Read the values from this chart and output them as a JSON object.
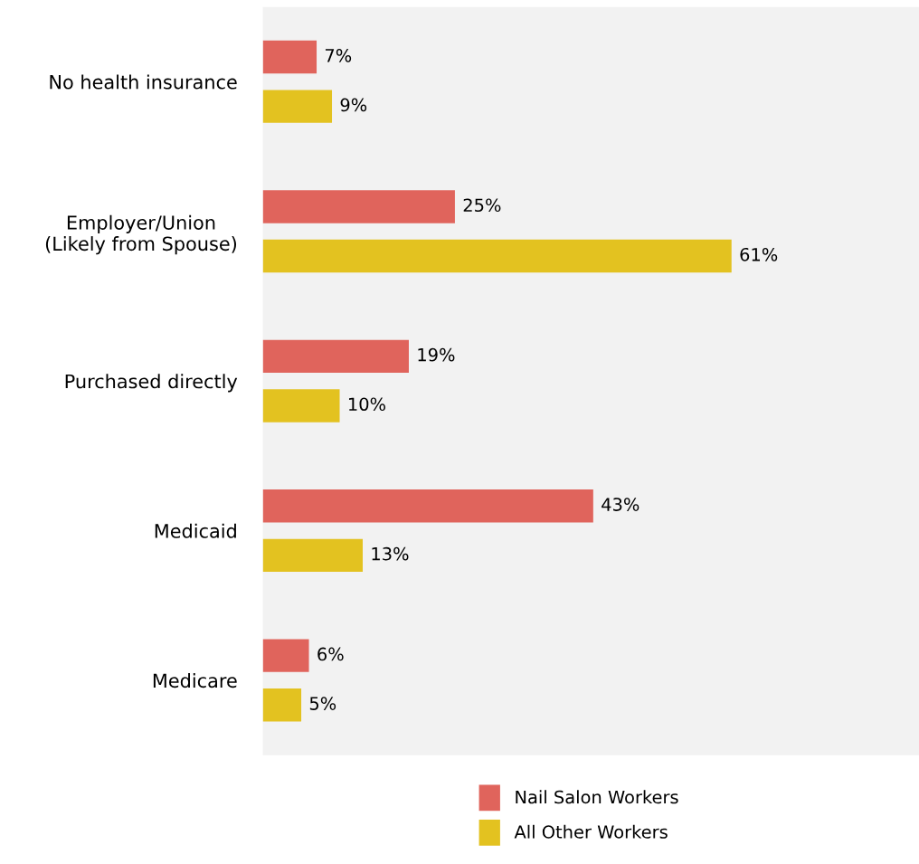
{
  "chart_data": {
    "type": "bar",
    "orientation": "horizontal",
    "categories": [
      "No health insurance",
      "Employer/Union\n(Likely from Spouse)",
      "Purchased directly",
      "Medicaid",
      "Medicare"
    ],
    "series": [
      {
        "name": "Nail Salon Workers",
        "color": "#e0645c",
        "values": [
          7,
          25,
          19,
          43,
          6
        ],
        "value_labels": [
          "7%",
          "25%",
          "19%",
          "43%",
          "6%"
        ]
      },
      {
        "name": "All Other Workers",
        "color": "#e3c220",
        "values": [
          9,
          61,
          10,
          13,
          5
        ],
        "value_labels": [
          "9%",
          "61%",
          "10%",
          "13%",
          "5%"
        ]
      }
    ],
    "legend": "bottom",
    "grid": false,
    "tick_labels": "y"
  }
}
